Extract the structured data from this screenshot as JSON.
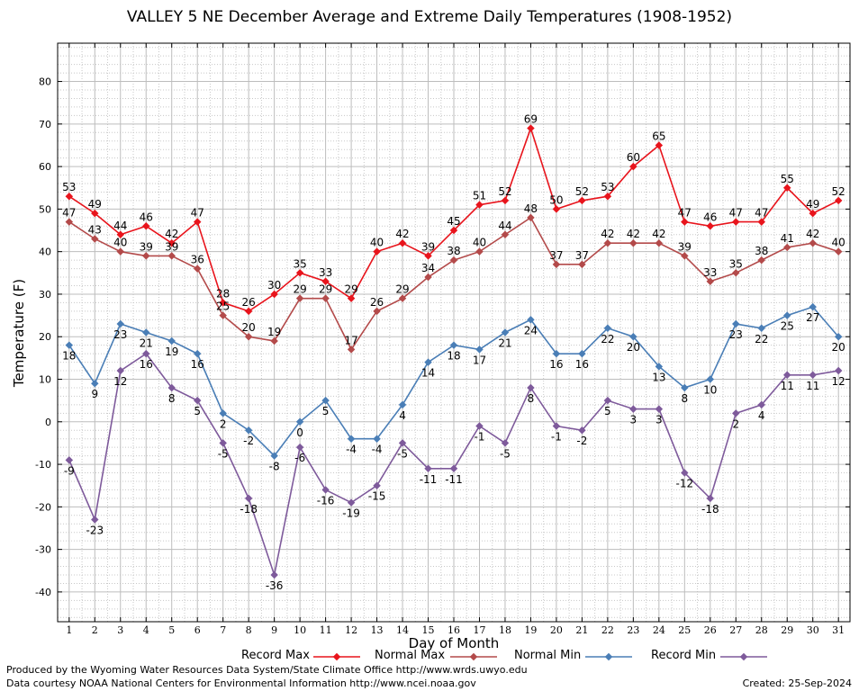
{
  "chart_data": {
    "type": "line",
    "title": "VALLEY 5 NE December Average and Extreme Daily Temperatures (1908-1952)",
    "xlabel": "Day of Month",
    "ylabel": "Temperature (F)",
    "ylim": [
      -47,
      89
    ],
    "yticks": [
      -40,
      -30,
      -20,
      -10,
      0,
      10,
      20,
      30,
      40,
      50,
      60,
      70,
      80
    ],
    "x": [
      1,
      2,
      3,
      4,
      5,
      6,
      7,
      8,
      9,
      10,
      11,
      12,
      13,
      14,
      15,
      16,
      17,
      18,
      19,
      20,
      21,
      22,
      23,
      24,
      25,
      26,
      27,
      28,
      29,
      30,
      31
    ],
    "grid": true,
    "legend": "bottom",
    "series": [
      {
        "name": "Record Max",
        "color": "#e8141c",
        "label_pos": "above",
        "values": [
          53,
          49,
          44,
          46,
          42,
          47,
          28,
          26,
          30,
          35,
          33,
          29,
          40,
          42,
          39,
          45,
          51,
          52,
          69,
          50,
          52,
          53,
          60,
          65,
          47,
          46,
          47,
          47,
          55,
          49,
          52
        ]
      },
      {
        "name": "Normal Max",
        "color": "#b34a4a",
        "label_pos": "above",
        "values": [
          47,
          43,
          40,
          39,
          39,
          36,
          25,
          20,
          19,
          29,
          29,
          17,
          26,
          29,
          34,
          38,
          40,
          44,
          48,
          37,
          37,
          42,
          42,
          42,
          39,
          33,
          35,
          38,
          41,
          42,
          40
        ]
      },
      {
        "name": "Normal Min",
        "color": "#4a7eb6",
        "label_pos": "below",
        "values": [
          18,
          9,
          23,
          21,
          19,
          16,
          2,
          -2,
          -8,
          0,
          5,
          -4,
          -4,
          4,
          14,
          18,
          17,
          21,
          24,
          16,
          16,
          22,
          20,
          13,
          8,
          10,
          23,
          22,
          25,
          27,
          20
        ]
      },
      {
        "name": "Record Min",
        "color": "#7e5a9b",
        "label_pos": "below",
        "values": [
          -9,
          -23,
          12,
          16,
          8,
          5,
          -5,
          -18,
          -36,
          -6,
          -16,
          -19,
          -15,
          -5,
          -11,
          -11,
          -1,
          -5,
          8,
          -1,
          -2,
          5,
          3,
          3,
          -12,
          -18,
          2,
          4,
          11,
          11,
          12
        ]
      }
    ]
  },
  "footer": {
    "produced_by": "Produced by the Wyoming Water Resources Data System/State Climate Office http://www.wrds.uwyo.edu",
    "data_courtesy": "Data courtesy NOAA National Centers for Environmental Information http://www.ncei.noaa.gov",
    "created": "Created:  25-Sep-2024"
  }
}
